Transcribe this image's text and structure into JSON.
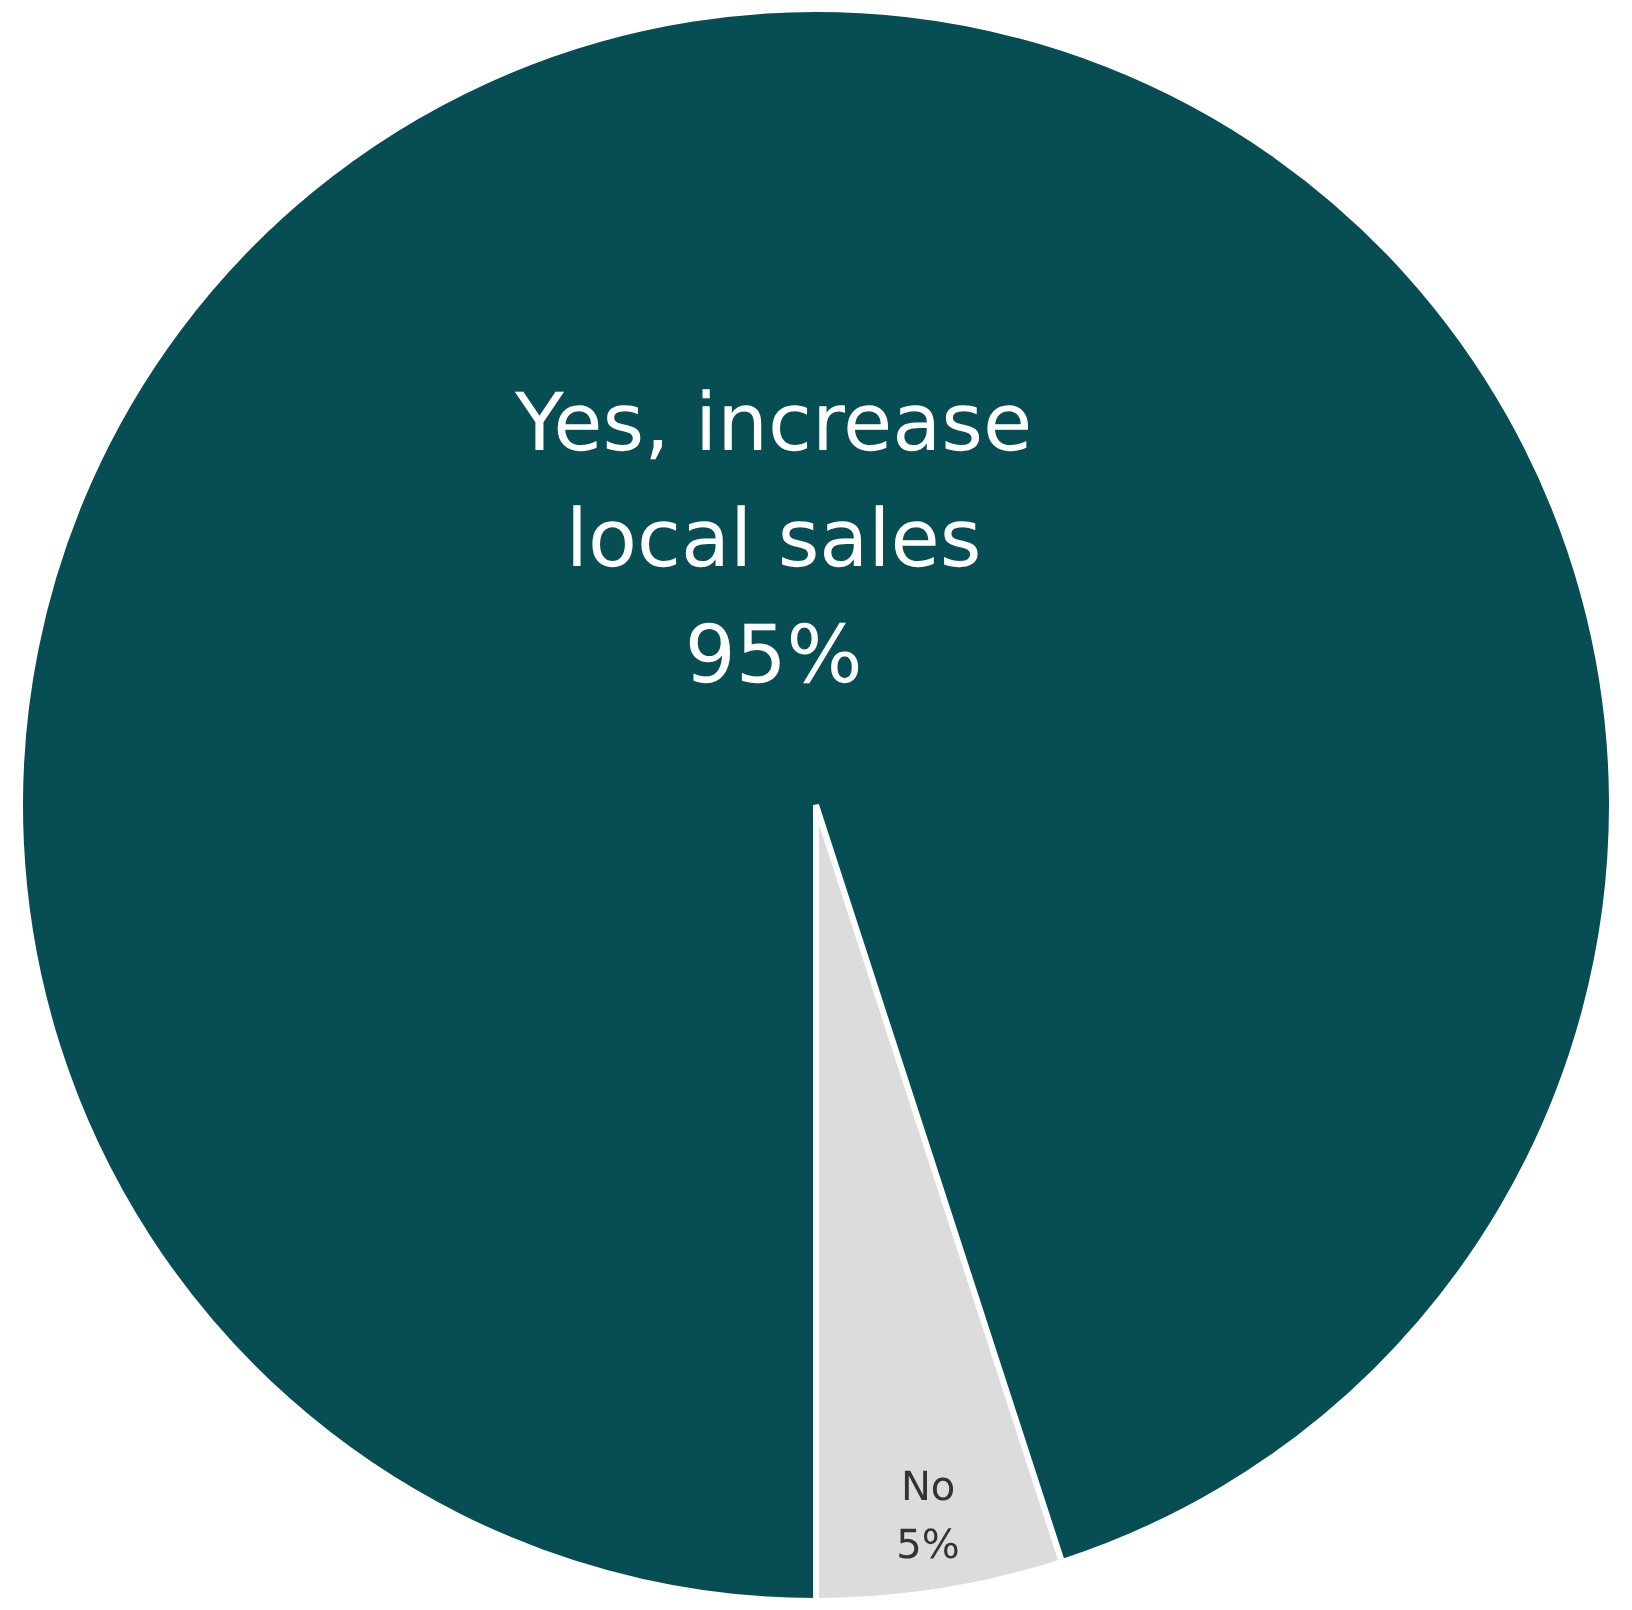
{
  "chart_data": {
    "type": "pie",
    "categories": [
      "No",
      "Yes, increase local sales"
    ],
    "values": [
      5,
      95
    ],
    "colors": [
      "#dcdcdc",
      "#064e53"
    ],
    "value_labels": [
      "5%",
      "95%"
    ],
    "legend": false
  }
}
